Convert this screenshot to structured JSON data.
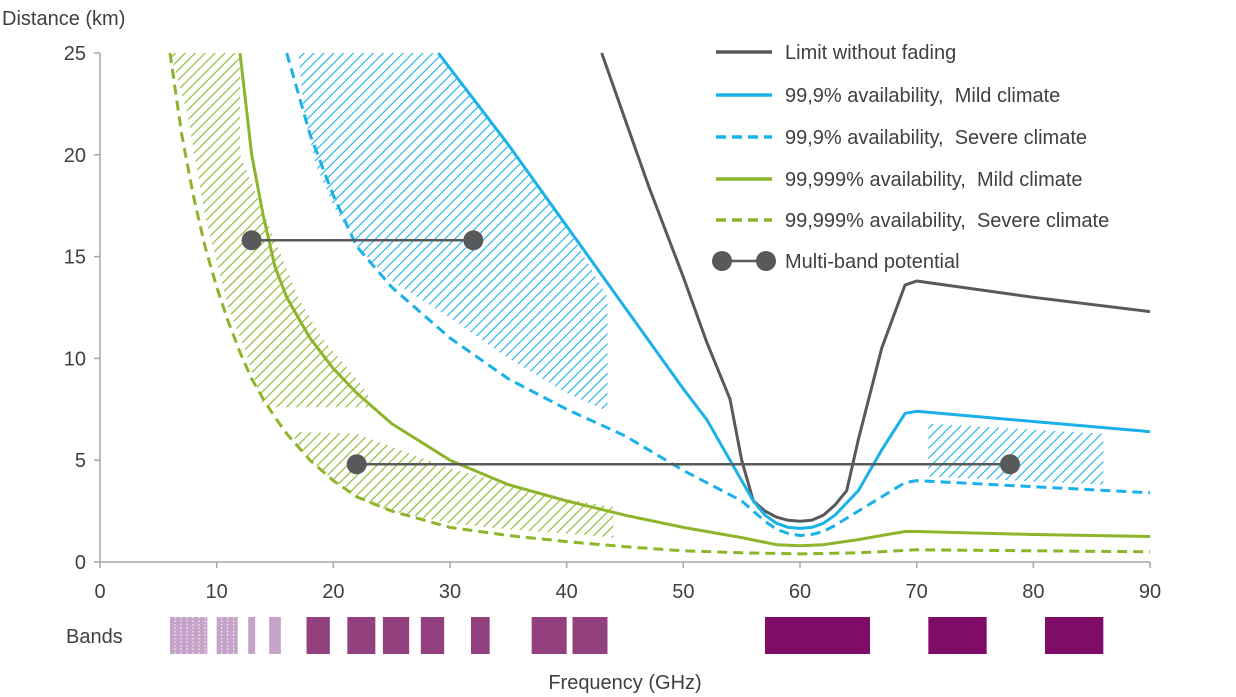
{
  "chart_data": {
    "type": "line",
    "ylabel": "Distance (km)",
    "xlabel": "Frequency (GHz)",
    "bands_label": "Bands",
    "xlim": [
      0,
      90
    ],
    "ylim": [
      0,
      25
    ],
    "xticks": [
      0,
      10,
      20,
      30,
      40,
      50,
      60,
      70,
      80,
      90
    ],
    "yticks": [
      0,
      5,
      10,
      15,
      20,
      25
    ],
    "grid": false,
    "legend_position": "top-right",
    "colors": {
      "no_fading": "#58595b",
      "blue": "#1ab0e8",
      "green": "#8db52c",
      "multiband": "#58595b",
      "band_light": "#c6a3c9",
      "band_mid": "#93407f",
      "band_dark": "#7f0c66",
      "axis": "#a6a6a6"
    },
    "series": [
      {
        "key": "no_fading",
        "name": "Limit without fading",
        "color": "#58595b",
        "dash": false,
        "x": [
          43,
          47,
          50,
          52,
          54,
          55,
          55.5,
          56,
          57,
          58,
          59,
          60,
          61,
          62,
          63,
          64,
          65,
          67,
          69,
          70,
          80,
          90
        ],
        "y": [
          25,
          18.5,
          14,
          10.8,
          8,
          5,
          4,
          3,
          2.5,
          2.2,
          2.05,
          2.0,
          2.05,
          2.3,
          2.8,
          3.5,
          6,
          10.5,
          13.6,
          13.8,
          13,
          12.3
        ]
      },
      {
        "key": "blue_mild",
        "name": "99,9% availability,  Mild climate",
        "color": "#1ab0e8",
        "dash": false,
        "x": [
          29,
          35,
          40,
          45,
          50,
          52,
          54,
          55,
          56,
          57,
          58,
          59,
          60,
          61,
          62,
          63,
          65,
          67,
          69,
          70,
          80,
          90
        ],
        "y": [
          25,
          20.5,
          16.5,
          12.5,
          8.5,
          7,
          5,
          4,
          3,
          2.3,
          1.9,
          1.7,
          1.65,
          1.7,
          1.9,
          2.3,
          3.5,
          5.5,
          7.3,
          7.4,
          6.9,
          6.4
        ]
      },
      {
        "key": "blue_severe",
        "name": "99,9% availability,  Severe climate",
        "color": "#1ab0e8",
        "dash": true,
        "x": [
          16,
          18,
          20,
          22,
          25,
          30,
          35,
          40,
          45,
          50,
          55,
          57,
          58,
          59,
          60,
          61,
          62,
          63,
          65,
          67,
          69,
          70,
          80,
          90
        ],
        "y": [
          25,
          21,
          18,
          15.5,
          13.5,
          11,
          9,
          7.5,
          6.2,
          4.5,
          3,
          2,
          1.6,
          1.4,
          1.3,
          1.35,
          1.5,
          1.8,
          2.5,
          3.2,
          3.9,
          4.0,
          3.7,
          3.4
        ]
      },
      {
        "key": "green_mild",
        "name": "99,999% availability,  Mild climate",
        "color": "#8db52c",
        "dash": false,
        "x": [
          12,
          13,
          14,
          15,
          16,
          17,
          18,
          20,
          22,
          25,
          30,
          35,
          40,
          45,
          50,
          55,
          58,
          60,
          62,
          65,
          67,
          69,
          70,
          80,
          90
        ],
        "y": [
          25,
          20,
          17,
          14.5,
          13,
          12,
          11,
          9.5,
          8.3,
          6.8,
          5.0,
          3.8,
          3.0,
          2.3,
          1.7,
          1.2,
          0.85,
          0.8,
          0.85,
          1.1,
          1.3,
          1.5,
          1.5,
          1.35,
          1.25
        ]
      },
      {
        "key": "green_severe",
        "name": "99,999% availability,  Severe climate",
        "color": "#8db52c",
        "dash": true,
        "x": [
          6,
          7,
          8,
          9,
          10,
          11,
          12,
          13,
          14,
          15,
          16,
          18,
          20,
          22,
          25,
          30,
          35,
          40,
          45,
          50,
          55,
          60,
          65,
          70,
          80,
          90
        ],
        "y": [
          25,
          21,
          18,
          15.5,
          13.5,
          11.8,
          10.3,
          9,
          8,
          7.1,
          6.3,
          5,
          4,
          3.2,
          2.5,
          1.7,
          1.3,
          1.0,
          0.75,
          0.55,
          0.45,
          0.4,
          0.45,
          0.6,
          0.55,
          0.5
        ]
      }
    ],
    "multiband": {
      "name": "Multi-band potential",
      "segments": [
        {
          "x": [
            13,
            32
          ],
          "y": 15.8
        },
        {
          "x": [
            22,
            78
          ],
          "y": 4.8
        }
      ]
    },
    "shaded_regions": [
      {
        "color": "green",
        "x": [
          6,
          12,
          12,
          17,
          19,
          22,
          23,
          23,
          22,
          19,
          16,
          14,
          13.5,
          12.5,
          11,
          9,
          7.5
        ],
        "y": [
          25,
          25,
          20,
          13,
          11,
          9,
          8.2,
          7.6,
          7.6,
          7.6,
          7.6,
          7.6,
          8.5,
          10.3,
          12.5,
          17,
          22
        ]
      },
      {
        "color": "green",
        "x": [
          16.5,
          22,
          30,
          40,
          44,
          44,
          40,
          35,
          30,
          25,
          22,
          20,
          18,
          16.5
        ],
        "y": [
          6.4,
          6.3,
          4.6,
          3.1,
          2.7,
          1.2,
          1.4,
          1.6,
          1.9,
          2.5,
          3.1,
          4,
          5,
          6.2
        ]
      },
      {
        "color": "blue",
        "x": [
          17,
          29,
          30,
          35,
          40,
          43.5,
          43.5,
          40,
          35,
          30,
          25,
          22,
          20,
          18.5,
          17.5
        ],
        "y": [
          25,
          25,
          24.2,
          20.5,
          16.5,
          13,
          7.4,
          8.3,
          10,
          12,
          13.8,
          15.5,
          17.5,
          19.5,
          22
        ]
      },
      {
        "color": "blue",
        "x": [
          71,
          86,
          86,
          71
        ],
        "y": [
          6.8,
          6.3,
          3.8,
          4.2
        ]
      }
    ],
    "bands": [
      {
        "x0": 6.0,
        "x1": 9.2,
        "shade": "light",
        "dotted": true
      },
      {
        "x0": 10.0,
        "x1": 11.8,
        "shade": "light",
        "dotted": true
      },
      {
        "x0": 12.7,
        "x1": 13.3,
        "shade": "light",
        "dotted": false
      },
      {
        "x0": 14.5,
        "x1": 15.5,
        "shade": "light",
        "dotted": false
      },
      {
        "x0": 17.7,
        "x1": 19.7,
        "shade": "mid",
        "dotted": false
      },
      {
        "x0": 21.2,
        "x1": 23.6,
        "shade": "mid",
        "dotted": false
      },
      {
        "x0": 24.25,
        "x1": 26.5,
        "shade": "mid",
        "dotted": false
      },
      {
        "x0": 27.5,
        "x1": 29.5,
        "shade": "mid",
        "dotted": false
      },
      {
        "x0": 31.8,
        "x1": 33.4,
        "shade": "mid",
        "dotted": false
      },
      {
        "x0": 37.0,
        "x1": 40.0,
        "shade": "mid",
        "dotted": false
      },
      {
        "x0": 40.5,
        "x1": 43.5,
        "shade": "mid",
        "dotted": false
      },
      {
        "x0": 57.0,
        "x1": 66.0,
        "shade": "dark",
        "dotted": false
      },
      {
        "x0": 71.0,
        "x1": 76.0,
        "shade": "dark",
        "dotted": false
      },
      {
        "x0": 81.0,
        "x1": 86.0,
        "shade": "dark",
        "dotted": false
      }
    ]
  }
}
